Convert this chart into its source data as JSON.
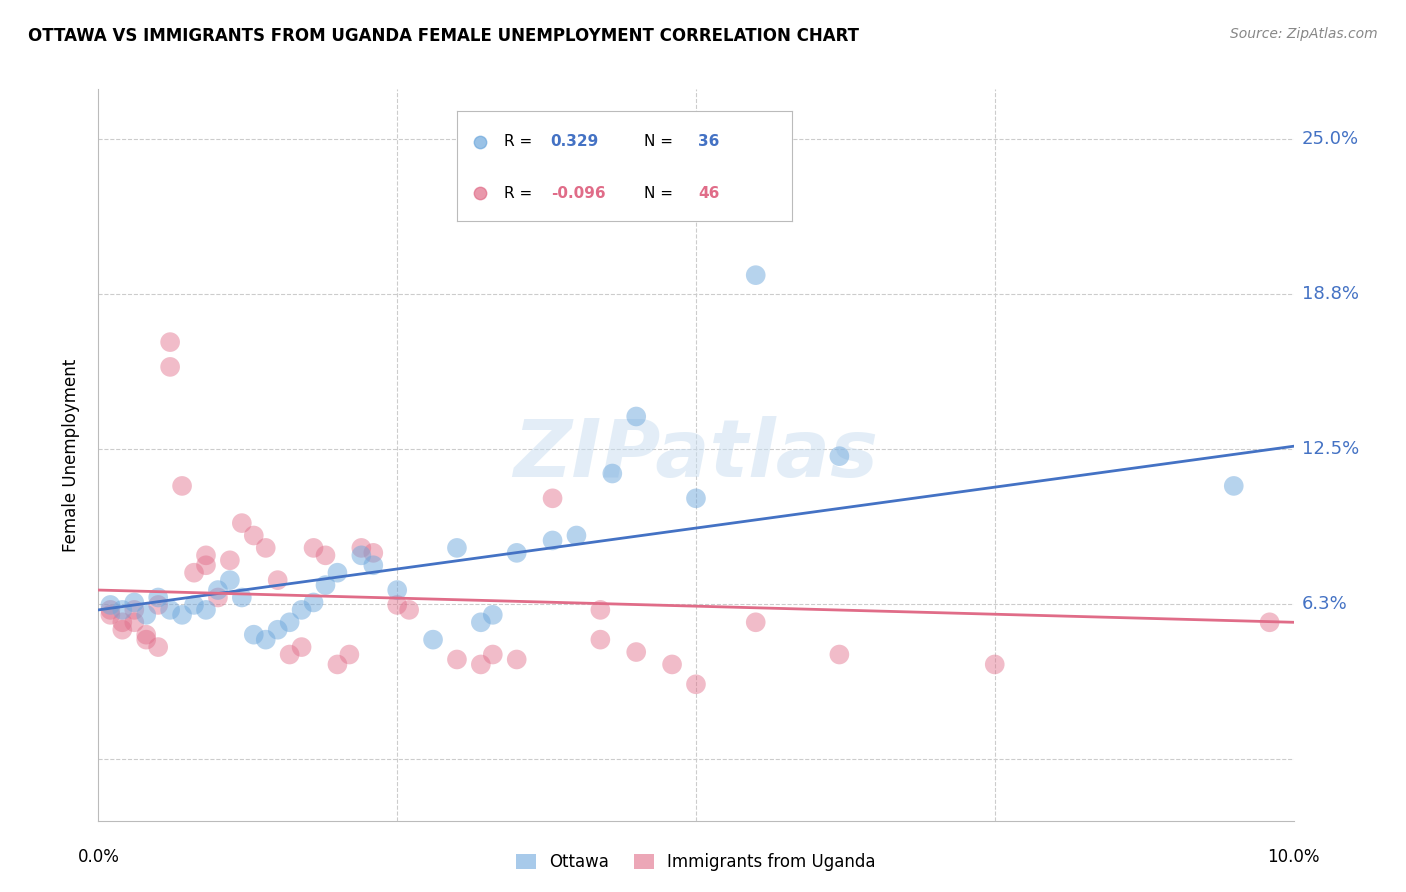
{
  "title": "OTTAWA VS IMMIGRANTS FROM UGANDA FEMALE UNEMPLOYMENT CORRELATION CHART",
  "source": "Source: ZipAtlas.com",
  "ylabel": "Female Unemployment",
  "y_ticks": [
    0.0,
    0.0625,
    0.125,
    0.1875,
    0.25
  ],
  "y_tick_labels": [
    "",
    "6.3%",
    "12.5%",
    "18.8%",
    "25.0%"
  ],
  "x_range": [
    0.0,
    0.1
  ],
  "y_range": [
    -0.025,
    0.27
  ],
  "watermark": "ZIPatlas",
  "ottawa_color": "#6fa8dc",
  "uganda_color": "#e06c88",
  "ottawa_line_color": "#4472c4",
  "uganda_line_color": "#e06c88",
  "ottawa_points": [
    [
      0.001,
      0.062
    ],
    [
      0.002,
      0.06
    ],
    [
      0.003,
      0.063
    ],
    [
      0.004,
      0.058
    ],
    [
      0.005,
      0.065
    ],
    [
      0.006,
      0.06
    ],
    [
      0.007,
      0.058
    ],
    [
      0.008,
      0.062
    ],
    [
      0.009,
      0.06
    ],
    [
      0.01,
      0.068
    ],
    [
      0.011,
      0.072
    ],
    [
      0.012,
      0.065
    ],
    [
      0.013,
      0.05
    ],
    [
      0.014,
      0.048
    ],
    [
      0.015,
      0.052
    ],
    [
      0.016,
      0.055
    ],
    [
      0.017,
      0.06
    ],
    [
      0.018,
      0.063
    ],
    [
      0.019,
      0.07
    ],
    [
      0.02,
      0.075
    ],
    [
      0.022,
      0.082
    ],
    [
      0.023,
      0.078
    ],
    [
      0.025,
      0.068
    ],
    [
      0.028,
      0.048
    ],
    [
      0.03,
      0.085
    ],
    [
      0.032,
      0.055
    ],
    [
      0.033,
      0.058
    ],
    [
      0.035,
      0.083
    ],
    [
      0.038,
      0.088
    ],
    [
      0.04,
      0.09
    ],
    [
      0.043,
      0.115
    ],
    [
      0.045,
      0.138
    ],
    [
      0.05,
      0.105
    ],
    [
      0.055,
      0.195
    ],
    [
      0.062,
      0.122
    ],
    [
      0.095,
      0.11
    ]
  ],
  "uganda_points": [
    [
      0.001,
      0.06
    ],
    [
      0.001,
      0.058
    ],
    [
      0.002,
      0.055
    ],
    [
      0.002,
      0.052
    ],
    [
      0.003,
      0.06
    ],
    [
      0.003,
      0.055
    ],
    [
      0.004,
      0.05
    ],
    [
      0.004,
      0.048
    ],
    [
      0.005,
      0.045
    ],
    [
      0.005,
      0.062
    ],
    [
      0.006,
      0.168
    ],
    [
      0.006,
      0.158
    ],
    [
      0.007,
      0.11
    ],
    [
      0.008,
      0.075
    ],
    [
      0.009,
      0.082
    ],
    [
      0.009,
      0.078
    ],
    [
      0.01,
      0.065
    ],
    [
      0.011,
      0.08
    ],
    [
      0.012,
      0.095
    ],
    [
      0.013,
      0.09
    ],
    [
      0.014,
      0.085
    ],
    [
      0.015,
      0.072
    ],
    [
      0.016,
      0.042
    ],
    [
      0.017,
      0.045
    ],
    [
      0.018,
      0.085
    ],
    [
      0.019,
      0.082
    ],
    [
      0.02,
      0.038
    ],
    [
      0.021,
      0.042
    ],
    [
      0.022,
      0.085
    ],
    [
      0.023,
      0.083
    ],
    [
      0.025,
      0.062
    ],
    [
      0.026,
      0.06
    ],
    [
      0.03,
      0.04
    ],
    [
      0.032,
      0.038
    ],
    [
      0.033,
      0.042
    ],
    [
      0.035,
      0.04
    ],
    [
      0.038,
      0.105
    ],
    [
      0.042,
      0.048
    ],
    [
      0.042,
      0.06
    ],
    [
      0.045,
      0.043
    ],
    [
      0.048,
      0.038
    ],
    [
      0.05,
      0.03
    ],
    [
      0.055,
      0.055
    ],
    [
      0.062,
      0.042
    ],
    [
      0.075,
      0.038
    ],
    [
      0.098,
      0.055
    ]
  ],
  "ottawa_line_x": [
    0.0,
    0.1
  ],
  "ottawa_line_y": [
    0.06,
    0.126
  ],
  "uganda_line_x": [
    0.0,
    0.1
  ],
  "uganda_line_y": [
    0.068,
    0.055
  ]
}
